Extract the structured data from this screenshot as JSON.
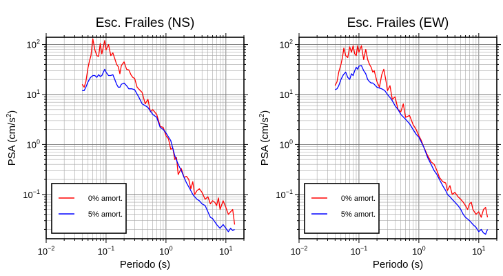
{
  "chart_data": [
    {
      "type": "line",
      "title": "Esc. Frailes (NS)",
      "xlabel": "Periodo (s)",
      "ylabel_main": "PSA (cm/s",
      "ylabel_sup": "2",
      "ylabel_close": ")",
      "xscale": "log",
      "yscale": "log",
      "xlim": [
        0.01,
        20
      ],
      "ylim": [
        0.013,
        140
      ],
      "grid": true,
      "legend_position": "lower-left",
      "x_ticks": [
        {
          "value": 0.01,
          "base": "10",
          "exp": "−2"
        },
        {
          "value": 0.1,
          "base": "10",
          "exp": "−1"
        },
        {
          "value": 1,
          "base": "10",
          "exp": "0"
        },
        {
          "value": 10,
          "base": "10",
          "exp": "1"
        }
      ],
      "y_ticks": [
        {
          "value": 0.1,
          "base": "10",
          "exp": "−1"
        },
        {
          "value": 1,
          "base": "10",
          "exp": "0"
        },
        {
          "value": 10,
          "base": "10",
          "exp": "1"
        },
        {
          "value": 100,
          "base": "10",
          "exp": "2"
        }
      ],
      "series": [
        {
          "name": "0% amort.",
          "color": "#ff0000",
          "x": [
            0.04,
            0.043,
            0.046,
            0.05,
            0.053,
            0.056,
            0.06,
            0.065,
            0.07,
            0.075,
            0.08,
            0.085,
            0.09,
            0.095,
            0.1,
            0.11,
            0.12,
            0.13,
            0.14,
            0.15,
            0.16,
            0.17,
            0.18,
            0.2,
            0.22,
            0.24,
            0.26,
            0.28,
            0.3,
            0.33,
            0.36,
            0.4,
            0.45,
            0.5,
            0.55,
            0.6,
            0.7,
            0.8,
            0.9,
            1.0,
            1.1,
            1.2,
            1.3,
            1.4,
            1.5,
            1.6,
            1.8,
            2.0,
            2.2,
            2.4,
            2.6,
            2.8,
            3.0,
            3.3,
            3.6,
            4.0,
            4.5,
            5.0,
            5.5,
            6.0,
            6.5,
            7.0,
            7.5,
            8.0,
            9.0,
            10.0,
            11.0,
            12.0,
            13.0,
            14.0
          ],
          "y": [
            16,
            14,
            18,
            35,
            48,
            60,
            130,
            78,
            60,
            58,
            105,
            65,
            90,
            120,
            78,
            100,
            60,
            68,
            52,
            40,
            36,
            26,
            38,
            45,
            32,
            31,
            25,
            22,
            21,
            14,
            12.5,
            11,
            6.5,
            8,
            4.5,
            5,
            4,
            2.3,
            2.2,
            1.5,
            1.3,
            0.8,
            0.85,
            0.5,
            0.55,
            0.25,
            0.33,
            0.22,
            0.23,
            0.2,
            0.13,
            0.18,
            0.1,
            0.12,
            0.13,
            0.11,
            0.08,
            0.09,
            0.065,
            0.075,
            0.07,
            0.06,
            0.085,
            0.05,
            0.075,
            0.055,
            0.04,
            0.045,
            0.05,
            0.025
          ]
        },
        {
          "name": "5% amort.",
          "color": "#0000ff",
          "x": [
            0.04,
            0.043,
            0.046,
            0.05,
            0.055,
            0.06,
            0.065,
            0.07,
            0.075,
            0.08,
            0.085,
            0.09,
            0.095,
            0.1,
            0.11,
            0.12,
            0.13,
            0.14,
            0.15,
            0.16,
            0.17,
            0.18,
            0.2,
            0.22,
            0.24,
            0.27,
            0.3,
            0.35,
            0.4,
            0.45,
            0.5,
            0.6,
            0.7,
            0.8,
            0.9,
            1.0,
            1.2,
            1.4,
            1.6,
            1.8,
            2.0,
            2.2,
            2.5,
            2.8,
            3.0,
            3.3,
            3.6,
            4.0,
            4.5,
            5.0,
            5.5,
            6.0,
            7.0,
            8.0,
            9.0,
            10.0,
            11.0,
            12.0,
            13.0,
            14.0
          ],
          "y": [
            12,
            12,
            14,
            18,
            22,
            24,
            24,
            22,
            25,
            23,
            24,
            28,
            32,
            28,
            24,
            24,
            25,
            20,
            16,
            14,
            14,
            16,
            17,
            15,
            13,
            13,
            12.5,
            9,
            6.5,
            6,
            5.5,
            4,
            3.5,
            2.2,
            2.0,
            1.7,
            1.2,
            0.6,
            0.4,
            0.3,
            0.22,
            0.17,
            0.13,
            0.1,
            0.09,
            0.08,
            0.075,
            0.065,
            0.06,
            0.045,
            0.035,
            0.033,
            0.025,
            0.021,
            0.025,
            0.021,
            0.018,
            0.021,
            0.019,
            0.02
          ]
        }
      ]
    },
    {
      "type": "line",
      "title": "Esc. Frailes (EW)",
      "xlabel": "Periodo (s)",
      "ylabel_main": "PSA (cm/s",
      "ylabel_sup": "2",
      "ylabel_close": ")",
      "xscale": "log",
      "yscale": "log",
      "xlim": [
        0.01,
        20
      ],
      "ylim": [
        0.013,
        140
      ],
      "grid": true,
      "legend_position": "lower-left",
      "x_ticks": [
        {
          "value": 0.01,
          "base": "10",
          "exp": "−2"
        },
        {
          "value": 0.1,
          "base": "10",
          "exp": "−1"
        },
        {
          "value": 1,
          "base": "10",
          "exp": "0"
        },
        {
          "value": 10,
          "base": "10",
          "exp": "1"
        }
      ],
      "y_ticks": [
        {
          "value": 0.1,
          "base": "10",
          "exp": "−1"
        },
        {
          "value": 1,
          "base": "10",
          "exp": "0"
        },
        {
          "value": 10,
          "base": "10",
          "exp": "1"
        },
        {
          "value": 100,
          "base": "10",
          "exp": "2"
        }
      ],
      "series": [
        {
          "name": "0% amort.",
          "color": "#ff0000",
          "x": [
            0.04,
            0.043,
            0.046,
            0.05,
            0.053,
            0.056,
            0.06,
            0.065,
            0.07,
            0.075,
            0.08,
            0.085,
            0.09,
            0.095,
            0.1,
            0.11,
            0.12,
            0.13,
            0.14,
            0.15,
            0.16,
            0.17,
            0.18,
            0.2,
            0.22,
            0.24,
            0.26,
            0.28,
            0.3,
            0.33,
            0.36,
            0.4,
            0.45,
            0.5,
            0.55,
            0.6,
            0.7,
            0.8,
            0.9,
            1.0,
            1.1,
            1.2,
            1.4,
            1.6,
            1.8,
            2.0,
            2.2,
            2.5,
            2.8,
            3.0,
            3.3,
            3.6,
            4.0,
            4.5,
            5.0,
            5.5,
            6.0,
            6.5,
            7.0,
            7.5,
            8.0,
            9.0,
            10.0,
            11.0,
            12.0,
            13.0,
            14.0
          ],
          "y": [
            15,
            18,
            28,
            40,
            55,
            85,
            60,
            55,
            90,
            70,
            95,
            65,
            60,
            95,
            70,
            95,
            50,
            80,
            50,
            40,
            35,
            28,
            30,
            18,
            14,
            25,
            32,
            20,
            12,
            15,
            8,
            9,
            5,
            4.5,
            6.5,
            3.5,
            3.8,
            2.5,
            2.0,
            1.5,
            1.2,
            0.9,
            0.6,
            0.45,
            0.4,
            0.3,
            0.22,
            0.18,
            0.17,
            0.12,
            0.15,
            0.1,
            0.11,
            0.09,
            0.08,
            0.07,
            0.06,
            0.05,
            0.065,
            0.07,
            0.05,
            0.04,
            0.045,
            0.035,
            0.05,
            0.055,
            0.035
          ]
        },
        {
          "name": "5% amort.",
          "color": "#0000ff",
          "x": [
            0.04,
            0.043,
            0.046,
            0.05,
            0.055,
            0.06,
            0.065,
            0.07,
            0.075,
            0.08,
            0.085,
            0.09,
            0.095,
            0.1,
            0.11,
            0.12,
            0.13,
            0.14,
            0.15,
            0.16,
            0.17,
            0.18,
            0.2,
            0.22,
            0.24,
            0.27,
            0.3,
            0.35,
            0.4,
            0.45,
            0.5,
            0.6,
            0.7,
            0.8,
            0.9,
            1.0,
            1.2,
            1.4,
            1.6,
            1.8,
            2.0,
            2.2,
            2.5,
            2.8,
            3.0,
            3.3,
            3.6,
            4.0,
            4.5,
            5.0,
            5.5,
            6.0,
            7.0,
            8.0,
            9.0,
            10.0,
            11.0,
            12.0,
            13.0,
            14.0
          ],
          "y": [
            12.5,
            13,
            15,
            20,
            25,
            28,
            22,
            20,
            26,
            24,
            30,
            35,
            32,
            37,
            38,
            30,
            26,
            20,
            18,
            17,
            17,
            16,
            14,
            13.5,
            13,
            12,
            10,
            8,
            6,
            5,
            4,
            3.2,
            2.6,
            2.0,
            1.6,
            1.4,
            0.9,
            0.55,
            0.4,
            0.3,
            0.25,
            0.2,
            0.15,
            0.12,
            0.1,
            0.09,
            0.08,
            0.07,
            0.06,
            0.05,
            0.04,
            0.035,
            0.03,
            0.025,
            0.022,
            0.018,
            0.02,
            0.017,
            0.016,
            0.02
          ]
        }
      ]
    }
  ]
}
